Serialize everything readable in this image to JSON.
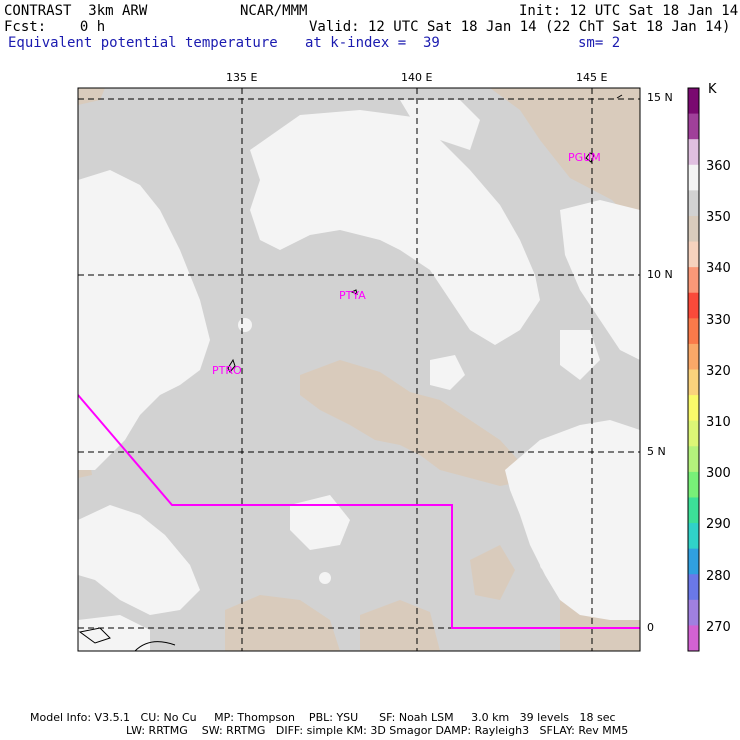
{
  "header": {
    "model": "CONTRAST  3km ARW",
    "center": "NCAR/MMM",
    "init": "Init: 12 UTC Sat 18 Jan 14",
    "fcst": "Fcst:    0 h",
    "valid": "Valid: 12 UTC Sat 18 Jan 14 (22 ChT Sat 18 Jan 14)",
    "field": "Equivalent potential temperature",
    "level": "at k-index =  39",
    "smooth": "sm= 2"
  },
  "map": {
    "lon_labels": [
      "135 E",
      "140 E",
      "145 E"
    ],
    "lat_labels": [
      "15 N",
      "10 N",
      "5 N",
      "0"
    ],
    "stations": [
      "PGUM",
      "PTYA",
      "PTRO"
    ],
    "colors": {
      "background": "#d2d2d2",
      "warm_patch": "#d9cbbc",
      "cool_patch": "#f4f4f4",
      "boundary": "#ff00ff",
      "station_text": "#ff00ff",
      "grid": "#000000"
    }
  },
  "colorbar": {
    "unit": "K",
    "labels": [
      "360",
      "350",
      "340",
      "330",
      "320",
      "310",
      "300",
      "290",
      "280",
      "270"
    ],
    "colors": [
      "#7a0a70",
      "#a0409a",
      "#e0c0e0",
      "#f4f4f4",
      "#d2d2d2",
      "#d9cbbc",
      "#f6d2be",
      "#fa9878",
      "#fa4a3a",
      "#fa7a4a",
      "#faa868",
      "#fad27c",
      "#fafa6a",
      "#dcf676",
      "#b4f27c",
      "#78f078",
      "#3ce098",
      "#30d2c8",
      "#30a0e0",
      "#6a78e8",
      "#a080e0",
      "#d262d2"
    ]
  },
  "footer": {
    "line1": "Model Info: V3.5.1   CU: No Cu     MP: Thompson    PBL: YSU      SF: Noah LSM     3.0 km   39 levels   18 sec",
    "line2": "LW: RRTMG    SW: RRTMG   DIFF: simple KM: 3D Smagor DAMP: Rayleigh3   SFLAY: Rev MM5"
  }
}
